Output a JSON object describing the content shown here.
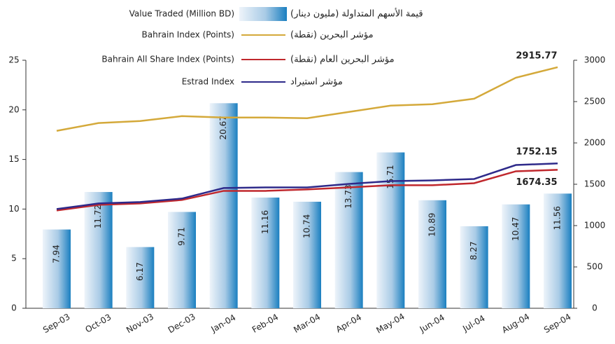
{
  "chart_data": {
    "type": "bar",
    "categories": [
      "Sep-03",
      "Oct-03",
      "Nov-03",
      "Dec-03",
      "Jan-04",
      "Feb-04",
      "Mar-04",
      "Apr-04",
      "May-04",
      "Jun-04",
      "Jul-04",
      "Aug-04",
      "Sep-04"
    ],
    "series": [
      {
        "name": "Value Traded (Million BD)",
        "name_ar": "قيمة الأسهم المتداولة (مليون دينار)",
        "type": "bar",
        "color": "#1a7fc0",
        "values": [
          7.94,
          11.72,
          6.17,
          9.71,
          20.67,
          11.16,
          10.74,
          13.73,
          15.71,
          10.89,
          8.27,
          10.47,
          11.56
        ]
      },
      {
        "name": "Bahrain Index (Points)",
        "name_ar": "مؤشر البحرين (نقطة)",
        "type": "line",
        "axis": "y2",
        "color": "#d4a93a",
        "values": [
          2146,
          2240,
          2265,
          2324,
          2307,
          2307,
          2299,
          2375,
          2451,
          2468,
          2535,
          2789,
          2915.77
        ]
      },
      {
        "name": "Bahrain All Share Index (Points)",
        "name_ar": "مؤشر البحرين العام (نقطة)",
        "type": "line",
        "axis": "y2",
        "color": "#c0282d",
        "values": [
          1183,
          1251,
          1268,
          1310,
          1420,
          1420,
          1437,
          1462,
          1488,
          1488,
          1513,
          1657,
          1674.35
        ]
      },
      {
        "name": "Estrad Index",
        "name_ar": "مؤشر استيراد",
        "type": "line",
        "axis": "y2",
        "color": "#2e2a8a",
        "values": [
          1200,
          1268,
          1285,
          1327,
          1454,
          1462,
          1462,
          1504,
          1538,
          1547,
          1564,
          1733,
          1752.15
        ]
      }
    ],
    "ylim": [
      0,
      25
    ],
    "yticks": [
      0,
      5,
      10,
      15,
      20,
      25
    ],
    "y2lim": [
      0,
      3000
    ],
    "y2ticks": [
      0,
      500,
      1000,
      1500,
      2000,
      2500,
      3000
    ]
  }
}
